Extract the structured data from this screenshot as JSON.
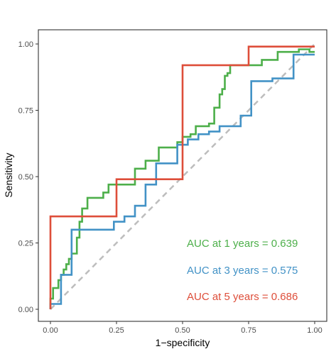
{
  "chart_data": {
    "type": "line",
    "xlabel": "1−specificity",
    "ylabel": "Sensitivity",
    "xlim": [
      0,
      1
    ],
    "ylim": [
      0,
      1
    ],
    "x_ticks": [
      "0.00",
      "0.25",
      "0.50",
      "0.75",
      "1.00"
    ],
    "y_ticks": [
      "0.00",
      "0.25",
      "0.50",
      "0.75",
      "1.00"
    ],
    "grid": false,
    "reference_line": {
      "from": [
        0,
        0
      ],
      "to": [
        1,
        1
      ],
      "style": "dashed",
      "color": "#bdbdbd"
    },
    "series": [
      {
        "color": "#4daf4a",
        "points": [
          [
            0.0,
            0.0
          ],
          [
            0.0,
            0.04
          ],
          [
            0.01,
            0.04
          ],
          [
            0.01,
            0.08
          ],
          [
            0.03,
            0.08
          ],
          [
            0.03,
            0.11
          ],
          [
            0.04,
            0.11
          ],
          [
            0.04,
            0.13
          ],
          [
            0.05,
            0.13
          ],
          [
            0.05,
            0.15
          ],
          [
            0.06,
            0.15
          ],
          [
            0.06,
            0.17
          ],
          [
            0.07,
            0.17
          ],
          [
            0.07,
            0.19
          ],
          [
            0.08,
            0.19
          ],
          [
            0.08,
            0.21
          ],
          [
            0.1,
            0.21
          ],
          [
            0.1,
            0.27
          ],
          [
            0.11,
            0.27
          ],
          [
            0.11,
            0.33
          ],
          [
            0.12,
            0.33
          ],
          [
            0.12,
            0.38
          ],
          [
            0.14,
            0.38
          ],
          [
            0.14,
            0.42
          ],
          [
            0.2,
            0.42
          ],
          [
            0.2,
            0.44
          ],
          [
            0.22,
            0.44
          ],
          [
            0.22,
            0.47
          ],
          [
            0.32,
            0.47
          ],
          [
            0.32,
            0.53
          ],
          [
            0.36,
            0.53
          ],
          [
            0.36,
            0.56
          ],
          [
            0.41,
            0.56
          ],
          [
            0.41,
            0.61
          ],
          [
            0.48,
            0.61
          ],
          [
            0.48,
            0.63
          ],
          [
            0.5,
            0.63
          ],
          [
            0.5,
            0.65
          ],
          [
            0.53,
            0.65
          ],
          [
            0.53,
            0.66
          ],
          [
            0.55,
            0.66
          ],
          [
            0.55,
            0.69
          ],
          [
            0.6,
            0.69
          ],
          [
            0.6,
            0.7
          ],
          [
            0.62,
            0.7
          ],
          [
            0.62,
            0.76
          ],
          [
            0.64,
            0.76
          ],
          [
            0.64,
            0.81
          ],
          [
            0.65,
            0.81
          ],
          [
            0.65,
            0.83
          ],
          [
            0.66,
            0.83
          ],
          [
            0.66,
            0.88
          ],
          [
            0.67,
            0.88
          ],
          [
            0.67,
            0.89
          ],
          [
            0.68,
            0.89
          ],
          [
            0.68,
            0.92
          ],
          [
            0.8,
            0.92
          ],
          [
            0.8,
            0.94
          ],
          [
            0.86,
            0.94
          ],
          [
            0.86,
            0.97
          ],
          [
            0.94,
            0.97
          ],
          [
            0.94,
            0.98
          ],
          [
            0.98,
            0.98
          ],
          [
            0.98,
            0.97
          ],
          [
            1.0,
            0.97
          ]
        ]
      },
      {
        "color": "#4292c6",
        "points": [
          [
            0.0,
            0.0
          ],
          [
            0.0,
            0.02
          ],
          [
            0.04,
            0.02
          ],
          [
            0.04,
            0.13
          ],
          [
            0.08,
            0.13
          ],
          [
            0.08,
            0.3
          ],
          [
            0.24,
            0.3
          ],
          [
            0.24,
            0.33
          ],
          [
            0.28,
            0.33
          ],
          [
            0.28,
            0.35
          ],
          [
            0.32,
            0.35
          ],
          [
            0.32,
            0.39
          ],
          [
            0.36,
            0.39
          ],
          [
            0.36,
            0.47
          ],
          [
            0.4,
            0.47
          ],
          [
            0.4,
            0.55
          ],
          [
            0.48,
            0.55
          ],
          [
            0.48,
            0.62
          ],
          [
            0.52,
            0.62
          ],
          [
            0.52,
            0.64
          ],
          [
            0.56,
            0.64
          ],
          [
            0.56,
            0.66
          ],
          [
            0.6,
            0.66
          ],
          [
            0.6,
            0.67
          ],
          [
            0.64,
            0.67
          ],
          [
            0.64,
            0.69
          ],
          [
            0.72,
            0.69
          ],
          [
            0.72,
            0.73
          ],
          [
            0.76,
            0.73
          ],
          [
            0.76,
            0.86
          ],
          [
            0.84,
            0.86
          ],
          [
            0.84,
            0.87
          ],
          [
            0.92,
            0.87
          ],
          [
            0.92,
            0.96
          ],
          [
            1.0,
            0.96
          ]
        ]
      },
      {
        "color": "#de4e3a",
        "points": [
          [
            0.0,
            0.0
          ],
          [
            0.0,
            0.35
          ],
          [
            0.25,
            0.35
          ],
          [
            0.25,
            0.49
          ],
          [
            0.5,
            0.49
          ],
          [
            0.5,
            0.92
          ],
          [
            0.75,
            0.92
          ],
          [
            0.75,
            0.99
          ],
          [
            1.0,
            0.99
          ]
        ]
      }
    ],
    "annotations": [
      {
        "text": "AUC at 1 years = 0.639",
        "color": "#4daf4a"
      },
      {
        "text": "AUC at 3 years = 0.575",
        "color": "#4292c6"
      },
      {
        "text": "AUC at 5 years = 0.686",
        "color": "#de4e3a"
      }
    ]
  }
}
